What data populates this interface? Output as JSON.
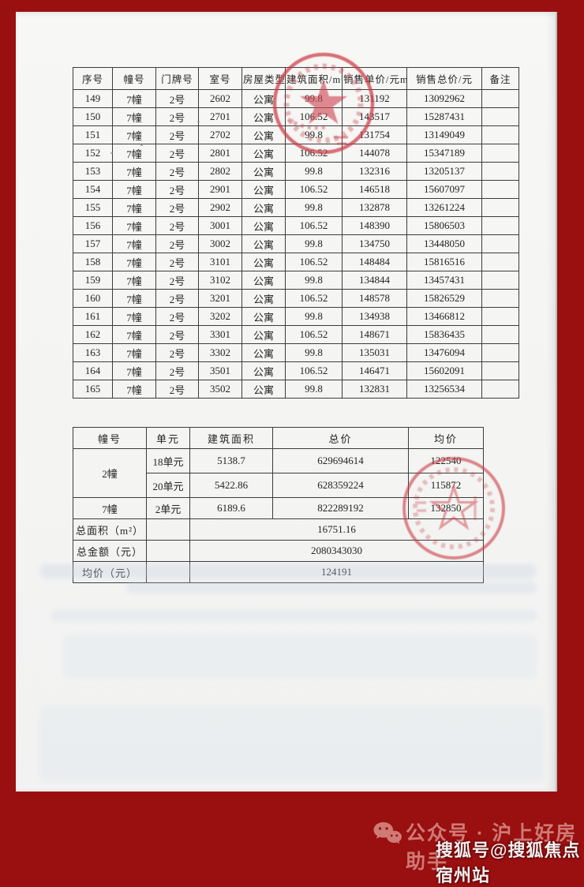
{
  "main_table": {
    "headers": [
      "序号",
      "幢号",
      "门牌号",
      "室号",
      "房屋类型",
      "建筑面积/m²",
      "销售单价/元m²",
      "销售总价/元",
      "备注"
    ],
    "rows": [
      [
        "149",
        "7幢",
        "2号",
        "2602",
        "公寓",
        "99.8",
        "131192",
        "13092962",
        ""
      ],
      [
        "150",
        "7幢",
        "2号",
        "2701",
        "公寓",
        "106.52",
        "143517",
        "15287431",
        ""
      ],
      [
        "151",
        "7幢",
        "2号",
        "2702",
        "公寓",
        "99.8",
        "131754",
        "13149049",
        ""
      ],
      [
        "152",
        "7幢",
        "2号",
        "2801",
        "公寓",
        "106.52",
        "144078",
        "15347189",
        ""
      ],
      [
        "153",
        "7幢",
        "2号",
        "2802",
        "公寓",
        "99.8",
        "132316",
        "13205137",
        ""
      ],
      [
        "154",
        "7幢",
        "2号",
        "2901",
        "公寓",
        "106.52",
        "146518",
        "15607097",
        ""
      ],
      [
        "155",
        "7幢",
        "2号",
        "2902",
        "公寓",
        "99.8",
        "132878",
        "13261224",
        ""
      ],
      [
        "156",
        "7幢",
        "2号",
        "3001",
        "公寓",
        "106.52",
        "148390",
        "15806503",
        ""
      ],
      [
        "157",
        "7幢",
        "2号",
        "3002",
        "公寓",
        "99.8",
        "134750",
        "13448050",
        ""
      ],
      [
        "158",
        "7幢",
        "2号",
        "3101",
        "公寓",
        "106.52",
        "148484",
        "15816516",
        ""
      ],
      [
        "159",
        "7幢",
        "2号",
        "3102",
        "公寓",
        "99.8",
        "134844",
        "13457431",
        ""
      ],
      [
        "160",
        "7幢",
        "2号",
        "3201",
        "公寓",
        "106.52",
        "148578",
        "15826529",
        ""
      ],
      [
        "161",
        "7幢",
        "2号",
        "3202",
        "公寓",
        "99.8",
        "134938",
        "13466812",
        ""
      ],
      [
        "162",
        "7幢",
        "2号",
        "3301",
        "公寓",
        "106.52",
        "148671",
        "15836435",
        ""
      ],
      [
        "163",
        "7幢",
        "2号",
        "3302",
        "公寓",
        "99.8",
        "135031",
        "13476094",
        ""
      ],
      [
        "164",
        "7幢",
        "2号",
        "3501",
        "公寓",
        "106.52",
        "146471",
        "15602091",
        ""
      ],
      [
        "165",
        "7幢",
        "2号",
        "3502",
        "公寓",
        "99.8",
        "132831",
        "13256534",
        ""
      ]
    ]
  },
  "summary_table": {
    "headers": [
      "幢号",
      "单元",
      "建筑面积",
      "总价",
      "均价"
    ],
    "building_rows": [
      {
        "building": "2幢",
        "unit": "18单元",
        "area": "5138.7",
        "total": "629694614",
        "avg": "122540"
      },
      {
        "unit": "20单元",
        "area": "5422.86",
        "total": "628359224",
        "avg": "115872"
      },
      {
        "building": "7幢",
        "unit": "2单元",
        "area": "6189.6",
        "total": "822289192",
        "avg": "132850"
      }
    ],
    "totals": [
      {
        "label": "总面积（m²）",
        "value": "16751.16"
      },
      {
        "label": "总金额（元）",
        "value": "2080343030"
      },
      {
        "label": "均价（元）",
        "value": "124191"
      }
    ]
  },
  "footer": {
    "wechat_label": "公众号 · 沪上好房助手",
    "sohu_label": "搜狐号@搜狐焦点宿州站",
    "wechat_icon": "wechat-icon"
  },
  "colors": {
    "frame_red": "#9a0f10",
    "stamp_red": "#cc3b46",
    "footer_pink": "#cf7a75",
    "footer_white": "#f4f0f0",
    "page_white": "#f6f6f4"
  }
}
